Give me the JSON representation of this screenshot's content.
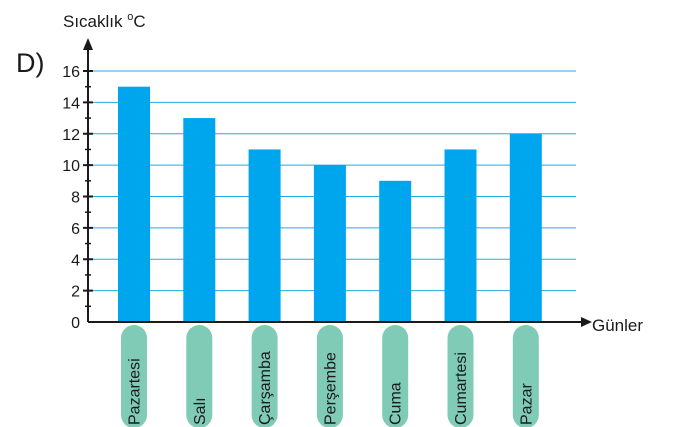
{
  "option_label": "D)",
  "chart_data": {
    "type": "bar",
    "ylabel_main": "Sıcaklık ",
    "ylabel_deg": "o",
    "ylabel_unit": "C",
    "xlabel": "Günler",
    "categories": [
      "Pazartesi",
      "Salı",
      "Çarşamba",
      "Perşembe",
      "Cuma",
      "Cumartesi",
      "Pazar"
    ],
    "values": [
      15,
      13,
      11,
      10,
      9,
      11,
      12
    ],
    "yticks": [
      0,
      2,
      4,
      6,
      8,
      10,
      12,
      14,
      16
    ],
    "ylim": [
      0,
      16
    ],
    "grid": true,
    "colors": {
      "bar": "#00a6ed",
      "grid": "#29a9e1",
      "label_pill": "#7fcbb5",
      "axis": "#1a1a1a"
    }
  }
}
